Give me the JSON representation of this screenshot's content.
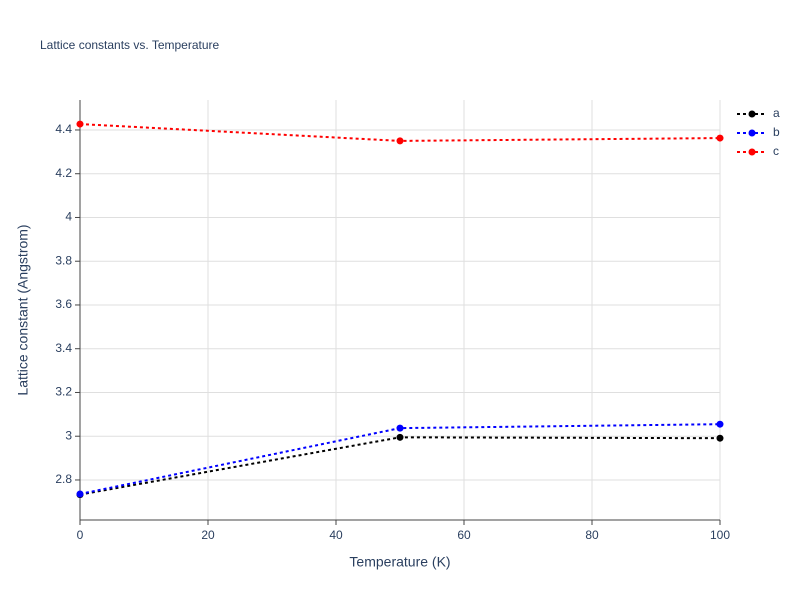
{
  "chart_data": {
    "type": "line",
    "title": "Lattice constants vs. Temperature",
    "x_label": "Temperature (K)",
    "y_label": "Lattice constant (Angstrom)",
    "x": [
      0,
      50,
      100
    ],
    "series": [
      {
        "name": "a",
        "color": "#000000",
        "values": [
          2.733,
          2.995,
          2.991
        ]
      },
      {
        "name": "b",
        "color": "#0000ff",
        "values": [
          2.736,
          3.037,
          3.055
        ]
      },
      {
        "name": "c",
        "color": "#ff0000",
        "values": [
          4.427,
          4.35,
          4.363
        ]
      }
    ],
    "xlim": [
      0,
      100
    ],
    "xticks": [
      0,
      20,
      40,
      60,
      80,
      100
    ],
    "ylim": [
      2.617,
      4.537
    ],
    "yticks": [
      2.8,
      3,
      3.2,
      3.4,
      3.6,
      3.8,
      4,
      4.2,
      4.4
    ],
    "grid": true,
    "legend": "top-right",
    "line_style": "dotted"
  }
}
